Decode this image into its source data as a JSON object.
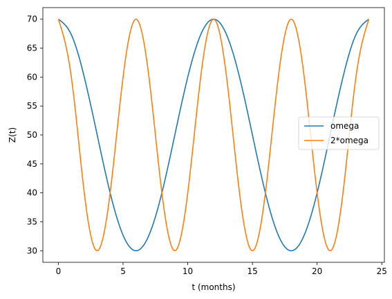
{
  "chart_data": {
    "type": "line",
    "title": "",
    "xlabel": "t (months)",
    "ylabel": "Z(t)",
    "xlim": [
      -1.2,
      25.2
    ],
    "ylim": [
      28,
      72
    ],
    "xticks": [
      0,
      5,
      10,
      15,
      20,
      25
    ],
    "yticks": [
      30,
      35,
      40,
      45,
      50,
      55,
      60,
      65,
      70
    ],
    "grid": false,
    "legend": {
      "placement": "center-right"
    },
    "series": [
      {
        "name": "omega",
        "color": "#1f77b4",
        "x": [
          0,
          1,
          2,
          3,
          4,
          5,
          6,
          7,
          8,
          9,
          10,
          11,
          12,
          13,
          14,
          15,
          16,
          17,
          18,
          19,
          20,
          21,
          22,
          23,
          24
        ],
        "values": [
          70,
          67.32,
          60,
          50,
          40,
          32.68,
          30,
          32.68,
          40,
          50,
          60,
          67.32,
          70,
          67.32,
          60,
          50,
          40,
          32.68,
          30,
          32.68,
          40,
          50,
          60,
          67.32,
          70
        ]
      },
      {
        "name": "2*omega",
        "color": "#ff7f0e",
        "x": [
          0,
          1,
          2,
          3,
          4,
          5,
          6,
          7,
          8,
          9,
          10,
          11,
          12,
          13,
          14,
          15,
          16,
          17,
          18,
          19,
          20,
          21,
          22,
          23,
          24
        ],
        "values": [
          70,
          60,
          40,
          30,
          40,
          60,
          70,
          60,
          40,
          30,
          40,
          60,
          70,
          60,
          40,
          30,
          40,
          60,
          70,
          60,
          40,
          30,
          40,
          60,
          70
        ]
      }
    ]
  }
}
